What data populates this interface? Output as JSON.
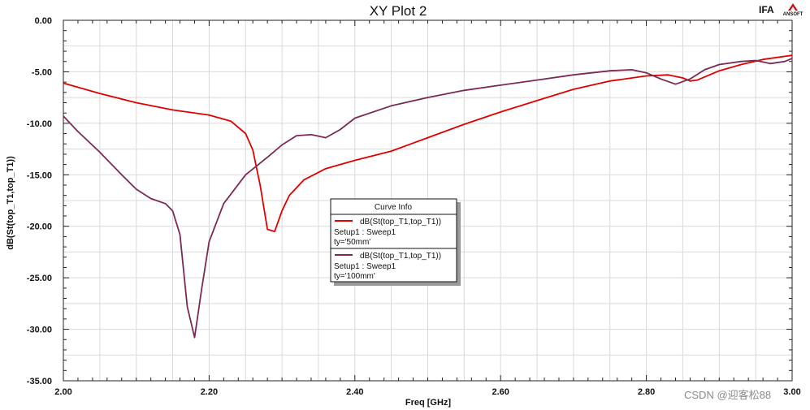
{
  "chart_data": {
    "type": "line",
    "title": "XY Plot 2",
    "xlabel": "Freq [GHz]",
    "ylabel": "dB(St(top_T1,top_T1))",
    "xlim": [
      2.0,
      3.0
    ],
    "ylim": [
      -35.0,
      0.0
    ],
    "x_ticks": [
      "2.00",
      "2.20",
      "2.40",
      "2.60",
      "2.80",
      "3.00"
    ],
    "y_ticks": [
      "0.00",
      "-5.00",
      "-10.00",
      "-15.00",
      "-20.00",
      "-25.00",
      "-30.00",
      "-35.00"
    ],
    "grid": true,
    "legend_title": "Curve Info",
    "legend_position": "center",
    "series": [
      {
        "name": "dB(St(top_T1,top_T1))",
        "setup": "Setup1 : Sweep1",
        "param": "ty='50mm'",
        "color": "#e00000",
        "points": [
          [
            2.0,
            -6.1
          ],
          [
            2.05,
            -7.1
          ],
          [
            2.1,
            -8.0
          ],
          [
            2.15,
            -8.7
          ],
          [
            2.2,
            -9.2
          ],
          [
            2.23,
            -9.8
          ],
          [
            2.25,
            -11.0
          ],
          [
            2.26,
            -12.6
          ],
          [
            2.27,
            -16.0
          ],
          [
            2.28,
            -20.3
          ],
          [
            2.29,
            -20.5
          ],
          [
            2.3,
            -18.5
          ],
          [
            2.31,
            -17.0
          ],
          [
            2.33,
            -15.5
          ],
          [
            2.36,
            -14.4
          ],
          [
            2.4,
            -13.6
          ],
          [
            2.45,
            -12.7
          ],
          [
            2.5,
            -11.4
          ],
          [
            2.55,
            -10.1
          ],
          [
            2.6,
            -8.9
          ],
          [
            2.65,
            -7.8
          ],
          [
            2.7,
            -6.7
          ],
          [
            2.75,
            -5.9
          ],
          [
            2.8,
            -5.4
          ],
          [
            2.83,
            -5.3
          ],
          [
            2.85,
            -5.6
          ],
          [
            2.86,
            -5.9
          ],
          [
            2.87,
            -5.8
          ],
          [
            2.9,
            -4.9
          ],
          [
            2.93,
            -4.3
          ],
          [
            2.96,
            -3.8
          ],
          [
            3.0,
            -3.4
          ]
        ]
      },
      {
        "name": "dB(St(top_T1,top_T1))",
        "setup": "Setup1 : Sweep1",
        "param": "ty='100mm'",
        "color": "#7b2a55",
        "points": [
          [
            2.0,
            -9.3
          ],
          [
            2.02,
            -10.8
          ],
          [
            2.05,
            -12.8
          ],
          [
            2.08,
            -15.0
          ],
          [
            2.1,
            -16.4
          ],
          [
            2.12,
            -17.3
          ],
          [
            2.14,
            -17.8
          ],
          [
            2.15,
            -18.5
          ],
          [
            2.16,
            -20.8
          ],
          [
            2.17,
            -27.8
          ],
          [
            2.18,
            -30.8
          ],
          [
            2.19,
            -26.0
          ],
          [
            2.2,
            -21.5
          ],
          [
            2.22,
            -17.8
          ],
          [
            2.25,
            -15.0
          ],
          [
            2.28,
            -13.3
          ],
          [
            2.3,
            -12.1
          ],
          [
            2.32,
            -11.2
          ],
          [
            2.34,
            -11.1
          ],
          [
            2.36,
            -11.4
          ],
          [
            2.38,
            -10.6
          ],
          [
            2.4,
            -9.5
          ],
          [
            2.45,
            -8.3
          ],
          [
            2.5,
            -7.5
          ],
          [
            2.55,
            -6.8
          ],
          [
            2.6,
            -6.3
          ],
          [
            2.65,
            -5.8
          ],
          [
            2.7,
            -5.3
          ],
          [
            2.75,
            -4.9
          ],
          [
            2.78,
            -4.8
          ],
          [
            2.8,
            -5.1
          ],
          [
            2.82,
            -5.7
          ],
          [
            2.84,
            -6.2
          ],
          [
            2.86,
            -5.7
          ],
          [
            2.88,
            -4.8
          ],
          [
            2.9,
            -4.3
          ],
          [
            2.93,
            -4.0
          ],
          [
            2.95,
            -3.9
          ],
          [
            2.97,
            -4.2
          ],
          [
            2.99,
            -4.0
          ],
          [
            3.0,
            -3.7
          ]
        ]
      }
    ]
  },
  "brand": {
    "product": "IFA",
    "logo_text": "ANSOFT"
  },
  "watermark": "CSDN @迎客松88"
}
